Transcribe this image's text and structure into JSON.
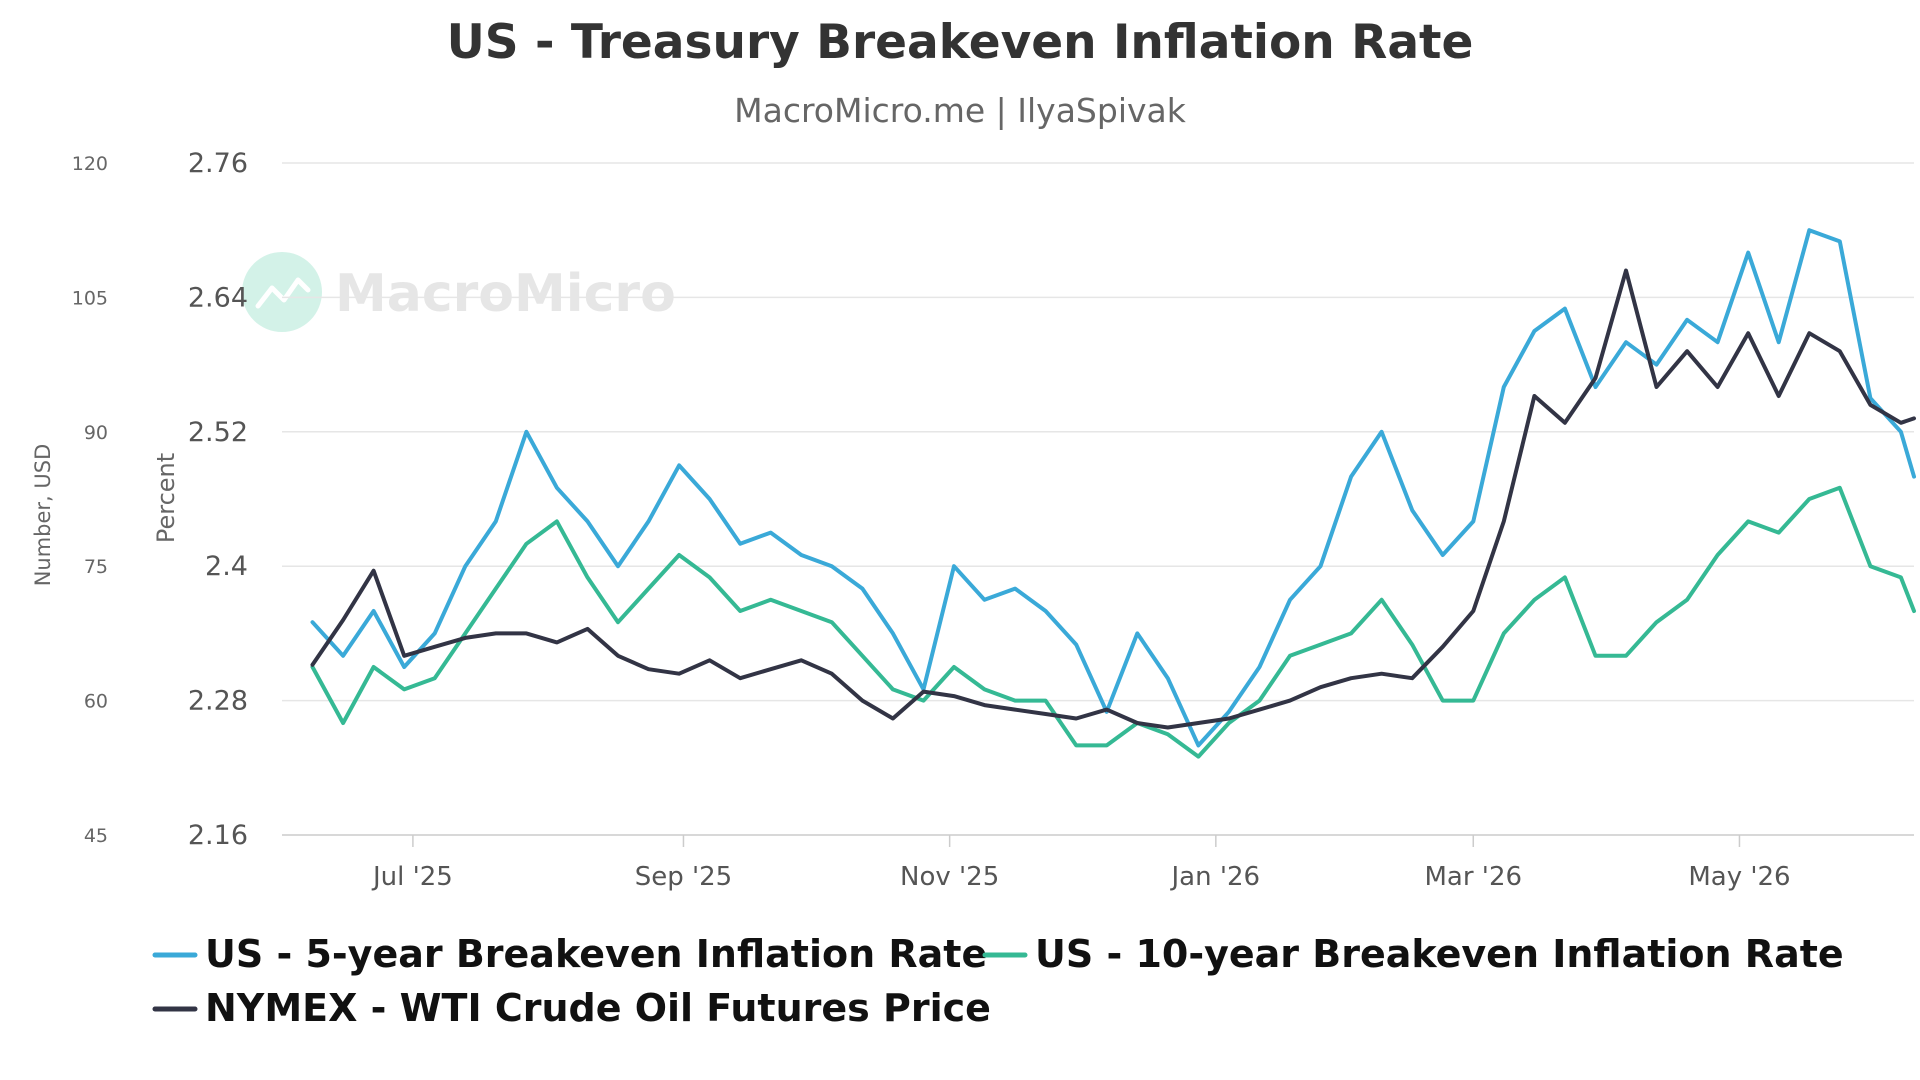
{
  "chart_data": {
    "type": "line",
    "title": "US - Treasury Breakeven Inflation Rate",
    "subtitle": "MacroMicro.me | IlyaSpivak",
    "watermark": "MacroMicro",
    "y_left": {
      "label": "Number, USD",
      "min": 45,
      "max": 120,
      "ticks": [
        "45",
        "60",
        "75",
        "90",
        "105",
        "120"
      ]
    },
    "y_right": {
      "label": "Percent",
      "min": 2.16,
      "max": 2.76,
      "ticks": [
        "2.16",
        "2.28",
        "2.4",
        "2.52",
        "2.64",
        "2.76"
      ]
    },
    "x_range": [
      "2025-06-01",
      "2026-06-10"
    ],
    "x_ticks": [
      {
        "date": "2025-07-01",
        "label": "Jul '25"
      },
      {
        "date": "2025-09-01",
        "label": "Sep '25"
      },
      {
        "date": "2025-11-01",
        "label": "Nov '25"
      },
      {
        "date": "2026-01-01",
        "label": "Jan '26"
      },
      {
        "date": "2026-03-01",
        "label": "Mar '26"
      },
      {
        "date": "2026-05-01",
        "label": "May '26"
      }
    ],
    "grid": true,
    "legend_position": "bottom",
    "series": [
      {
        "name": "US - 5-year Breakeven Inflation Rate",
        "color": "#3aa9d8",
        "axis": "right",
        "points": [
          [
            "2025-06-08",
            2.35
          ],
          [
            "2025-06-15",
            2.32
          ],
          [
            "2025-06-22",
            2.36
          ],
          [
            "2025-06-29",
            2.31
          ],
          [
            "2025-07-06",
            2.34
          ],
          [
            "2025-07-13",
            2.4
          ],
          [
            "2025-07-20",
            2.44
          ],
          [
            "2025-07-27",
            2.52
          ],
          [
            "2025-08-03",
            2.47
          ],
          [
            "2025-08-10",
            2.44
          ],
          [
            "2025-08-17",
            2.4
          ],
          [
            "2025-08-24",
            2.44
          ],
          [
            "2025-08-31",
            2.49
          ],
          [
            "2025-09-07",
            2.46
          ],
          [
            "2025-09-14",
            2.42
          ],
          [
            "2025-09-21",
            2.43
          ],
          [
            "2025-09-28",
            2.41
          ],
          [
            "2025-10-05",
            2.4
          ],
          [
            "2025-10-12",
            2.38
          ],
          [
            "2025-10-19",
            2.34
          ],
          [
            "2025-10-26",
            2.29
          ],
          [
            "2025-11-02",
            2.4
          ],
          [
            "2025-11-09",
            2.37
          ],
          [
            "2025-11-16",
            2.38
          ],
          [
            "2025-11-23",
            2.36
          ],
          [
            "2025-11-30",
            2.33
          ],
          [
            "2025-12-07",
            2.27
          ],
          [
            "2025-12-14",
            2.34
          ],
          [
            "2025-12-21",
            2.3
          ],
          [
            "2025-12-28",
            2.24
          ],
          [
            "2026-01-04",
            2.27
          ],
          [
            "2026-01-11",
            2.31
          ],
          [
            "2026-01-18",
            2.37
          ],
          [
            "2026-01-25",
            2.4
          ],
          [
            "2026-02-01",
            2.48
          ],
          [
            "2026-02-08",
            2.52
          ],
          [
            "2026-02-15",
            2.45
          ],
          [
            "2026-02-22",
            2.41
          ],
          [
            "2026-03-01",
            2.44
          ],
          [
            "2026-03-08",
            2.56
          ],
          [
            "2026-03-15",
            2.61
          ],
          [
            "2026-03-22",
            2.63
          ],
          [
            "2026-03-29",
            2.56
          ],
          [
            "2026-04-05",
            2.6
          ],
          [
            "2026-04-12",
            2.58
          ],
          [
            "2026-04-19",
            2.62
          ],
          [
            "2026-04-26",
            2.6
          ],
          [
            "2026-05-03",
            2.68
          ],
          [
            "2026-05-10",
            2.6
          ],
          [
            "2026-05-17",
            2.7
          ],
          [
            "2026-05-24",
            2.69
          ],
          [
            "2026-05-31",
            2.55
          ],
          [
            "2026-06-07",
            2.52
          ],
          [
            "2026-06-10",
            2.48
          ]
        ]
      },
      {
        "name": "US - 10-year Breakeven Inflation Rate",
        "color": "#35b994",
        "axis": "right",
        "points": [
          [
            "2025-06-08",
            2.31
          ],
          [
            "2025-06-15",
            2.26
          ],
          [
            "2025-06-22",
            2.31
          ],
          [
            "2025-06-29",
            2.29
          ],
          [
            "2025-07-06",
            2.3
          ],
          [
            "2025-07-13",
            2.34
          ],
          [
            "2025-07-20",
            2.38
          ],
          [
            "2025-07-27",
            2.42
          ],
          [
            "2025-08-03",
            2.44
          ],
          [
            "2025-08-10",
            2.39
          ],
          [
            "2025-08-17",
            2.35
          ],
          [
            "2025-08-24",
            2.38
          ],
          [
            "2025-08-31",
            2.41
          ],
          [
            "2025-09-07",
            2.39
          ],
          [
            "2025-09-14",
            2.36
          ],
          [
            "2025-09-21",
            2.37
          ],
          [
            "2025-09-28",
            2.36
          ],
          [
            "2025-10-05",
            2.35
          ],
          [
            "2025-10-12",
            2.32
          ],
          [
            "2025-10-19",
            2.29
          ],
          [
            "2025-10-26",
            2.28
          ],
          [
            "2025-11-02",
            2.31
          ],
          [
            "2025-11-09",
            2.29
          ],
          [
            "2025-11-16",
            2.28
          ],
          [
            "2025-11-23",
            2.28
          ],
          [
            "2025-11-30",
            2.24
          ],
          [
            "2025-12-07",
            2.24
          ],
          [
            "2025-12-14",
            2.26
          ],
          [
            "2025-12-21",
            2.25
          ],
          [
            "2025-12-28",
            2.23
          ],
          [
            "2026-01-04",
            2.26
          ],
          [
            "2026-01-11",
            2.28
          ],
          [
            "2026-01-18",
            2.32
          ],
          [
            "2026-01-25",
            2.33
          ],
          [
            "2026-02-01",
            2.34
          ],
          [
            "2026-02-08",
            2.37
          ],
          [
            "2026-02-15",
            2.33
          ],
          [
            "2026-02-22",
            2.28
          ],
          [
            "2026-03-01",
            2.28
          ],
          [
            "2026-03-08",
            2.34
          ],
          [
            "2026-03-15",
            2.37
          ],
          [
            "2026-03-22",
            2.39
          ],
          [
            "2026-03-29",
            2.32
          ],
          [
            "2026-04-05",
            2.32
          ],
          [
            "2026-04-12",
            2.35
          ],
          [
            "2026-04-19",
            2.37
          ],
          [
            "2026-04-26",
            2.41
          ],
          [
            "2026-05-03",
            2.44
          ],
          [
            "2026-05-10",
            2.43
          ],
          [
            "2026-05-17",
            2.46
          ],
          [
            "2026-05-24",
            2.47
          ],
          [
            "2026-05-31",
            2.4
          ],
          [
            "2026-06-07",
            2.39
          ],
          [
            "2026-06-10",
            2.36
          ]
        ]
      },
      {
        "name": "NYMEX - WTI Crude Oil Futures Price",
        "color": "#323445",
        "axis": "left",
        "points": [
          [
            "2025-06-08",
            64.0
          ],
          [
            "2025-06-15",
            69.0
          ],
          [
            "2025-06-22",
            74.5
          ],
          [
            "2025-06-29",
            65.0
          ],
          [
            "2025-07-06",
            66.0
          ],
          [
            "2025-07-13",
            67.0
          ],
          [
            "2025-07-20",
            67.5
          ],
          [
            "2025-07-27",
            67.5
          ],
          [
            "2025-08-03",
            66.5
          ],
          [
            "2025-08-10",
            68.0
          ],
          [
            "2025-08-17",
            65.0
          ],
          [
            "2025-08-24",
            63.5
          ],
          [
            "2025-08-31",
            63.0
          ],
          [
            "2025-09-07",
            64.5
          ],
          [
            "2025-09-14",
            62.5
          ],
          [
            "2025-09-21",
            63.5
          ],
          [
            "2025-09-28",
            64.5
          ],
          [
            "2025-10-05",
            63.0
          ],
          [
            "2025-10-12",
            60.0
          ],
          [
            "2025-10-19",
            58.0
          ],
          [
            "2025-10-26",
            61.0
          ],
          [
            "2025-11-02",
            60.5
          ],
          [
            "2025-11-09",
            59.5
          ],
          [
            "2025-11-16",
            59.0
          ],
          [
            "2025-11-23",
            58.5
          ],
          [
            "2025-11-30",
            58.0
          ],
          [
            "2025-12-07",
            59.0
          ],
          [
            "2025-12-14",
            57.5
          ],
          [
            "2025-12-21",
            57.0
          ],
          [
            "2025-12-28",
            57.5
          ],
          [
            "2026-01-04",
            58.0
          ],
          [
            "2026-01-11",
            59.0
          ],
          [
            "2026-01-18",
            60.0
          ],
          [
            "2026-01-25",
            61.5
          ],
          [
            "2026-02-01",
            62.5
          ],
          [
            "2026-02-08",
            63.0
          ],
          [
            "2026-02-15",
            62.5
          ],
          [
            "2026-02-22",
            66.0
          ],
          [
            "2026-03-01",
            70.0
          ],
          [
            "2026-03-08",
            80.0
          ],
          [
            "2026-03-15",
            94.0
          ],
          [
            "2026-03-22",
            91.0
          ],
          [
            "2026-03-29",
            96.0
          ],
          [
            "2026-04-05",
            108.0
          ],
          [
            "2026-04-12",
            95.0
          ],
          [
            "2026-04-19",
            99.0
          ],
          [
            "2026-04-26",
            95.0
          ],
          [
            "2026-05-03",
            101.0
          ],
          [
            "2026-05-10",
            94.0
          ],
          [
            "2026-05-17",
            101.0
          ],
          [
            "2026-05-24",
            99.0
          ],
          [
            "2026-05-31",
            93.0
          ],
          [
            "2026-06-07",
            91.0
          ],
          [
            "2026-06-10",
            91.5
          ]
        ]
      }
    ]
  }
}
